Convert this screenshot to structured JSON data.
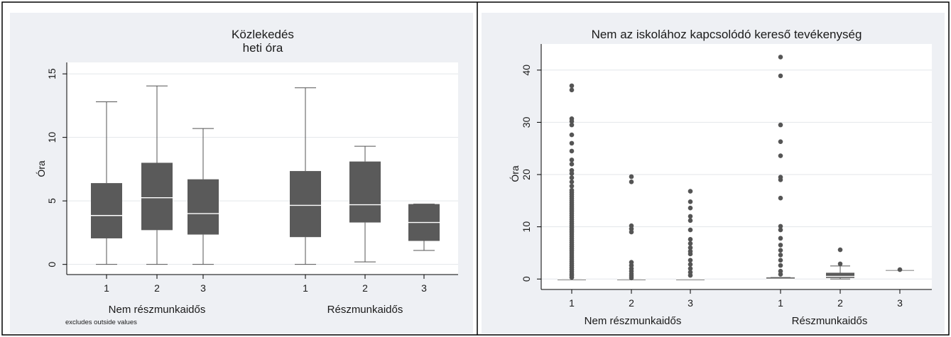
{
  "chart_data": [
    {
      "type": "box",
      "title": "Közlekedés",
      "subtitle": "heti óra",
      "ylabel": "Óra",
      "note": "excludes outside values",
      "ylim": [
        -0.8,
        15.9
      ],
      "yticks": [
        0,
        5,
        10,
        15
      ],
      "grid": true,
      "groups": [
        "Nem részmunkaidős",
        "Részmunkaidős"
      ],
      "categories": [
        "1",
        "2",
        "3"
      ],
      "boxes": [
        {
          "group": "Nem részmunkaidős",
          "category": "1",
          "min": 0,
          "q1": 2.05,
          "median": 3.85,
          "q3": 6.4,
          "max": 12.8
        },
        {
          "group": "Nem részmunkaidős",
          "category": "2",
          "min": 0,
          "q1": 2.7,
          "median": 5.25,
          "q3": 8.0,
          "max": 14.05
        },
        {
          "group": "Nem részmunkaidős",
          "category": "3",
          "min": 0,
          "q1": 2.35,
          "median": 4.0,
          "q3": 6.7,
          "max": 10.7
        },
        {
          "group": "Részmunkaidős",
          "category": "1",
          "min": 0,
          "q1": 2.15,
          "median": 4.65,
          "q3": 7.35,
          "max": 13.9
        },
        {
          "group": "Részmunkaidős",
          "category": "2",
          "min": 0.2,
          "q1": 3.3,
          "median": 4.7,
          "q3": 8.1,
          "max": 9.3
        },
        {
          "group": "Részmunkaidős",
          "category": "3",
          "min": 1.1,
          "q1": 1.85,
          "median": 3.3,
          "q3": 4.75,
          "max": 4.75
        }
      ]
    },
    {
      "type": "box",
      "title": "Nem az iskolához kapcsolódó kereső tevékenység",
      "ylabel": "Óra",
      "ylim": [
        -2,
        45
      ],
      "yticks": [
        0,
        10,
        20,
        30,
        40
      ],
      "grid": true,
      "groups": [
        "Nem részmunkaidős",
        "Részmunkaidős"
      ],
      "categories": [
        "1",
        "2",
        "3"
      ],
      "boxes": [
        {
          "group": "Nem részmunkaidős",
          "category": "1",
          "min": 0,
          "q1": 0,
          "median": 0,
          "q3": 0,
          "max": 0,
          "outliers": [
            0.3,
            0.7,
            1.0,
            1.4,
            1.8,
            2.2,
            2.6,
            3.0,
            3.4,
            3.8,
            4.2,
            4.6,
            5.0,
            5.4,
            5.8,
            6.2,
            6.6,
            7.0,
            7.4,
            7.8,
            8.2,
            8.6,
            9.0,
            9.4,
            9.8,
            10.2,
            10.6,
            11.0,
            11.4,
            11.8,
            12.2,
            12.6,
            13.0,
            13.4,
            13.8,
            14.2,
            14.6,
            15.0,
            15.4,
            15.8,
            16.2,
            16.6,
            17.0,
            17.8,
            18.6,
            19.4,
            20.2,
            20.8,
            22.0,
            22.8,
            24.5,
            26.0,
            27.6,
            29.5,
            30.2,
            30.7,
            36.2,
            37.0
          ]
        },
        {
          "group": "Nem részmunkaidős",
          "category": "2",
          "min": 0,
          "q1": 0,
          "median": 0,
          "q3": 0,
          "max": 0,
          "outliers": [
            0.2,
            0.6,
            1.0,
            1.5,
            2.0,
            2.6,
            3.2,
            9.0,
            9.6,
            10.2,
            18.6,
            19.6
          ]
        },
        {
          "group": "Nem részmunkaidős",
          "category": "3",
          "min": 0,
          "q1": 0,
          "median": 0,
          "q3": 0,
          "max": 0,
          "outliers": [
            0.7,
            1.3,
            2.0,
            2.8,
            3.6,
            4.8,
            5.3,
            6.0,
            6.8,
            7.6,
            9.4,
            11.2,
            12.0,
            13.6,
            14.8,
            16.8
          ]
        },
        {
          "group": "Részmunkaidős",
          "category": "1",
          "min": 0,
          "q1": 0,
          "median": 0,
          "q3": 0.3,
          "max": 0.3,
          "outliers": [
            0.9,
            1.5,
            2.6,
            3.6,
            4.6,
            5.5,
            6.5,
            7.8,
            9.4,
            10.1,
            15.5,
            19.0,
            19.5,
            23.6,
            26.3,
            29.5,
            38.9,
            42.5
          ]
        },
        {
          "group": "Részmunkaidős",
          "category": "2",
          "min": 0,
          "q1": 0.2,
          "median": 0.5,
          "q3": 1.2,
          "max": 2.5,
          "outliers": [
            2.9,
            5.6
          ]
        },
        {
          "group": "Részmunkaidős",
          "category": "3",
          "min": 1.8,
          "q1": 1.8,
          "median": 1.8,
          "q3": 1.8,
          "max": 1.8,
          "outliers": [
            1.8
          ]
        }
      ]
    }
  ]
}
